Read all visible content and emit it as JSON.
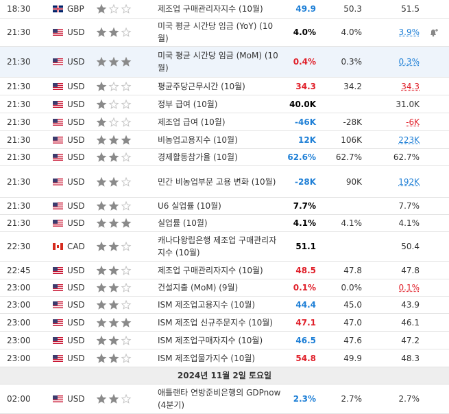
{
  "date_row": "2024년 11월 2일 토요일",
  "rows": [
    {
      "time": "18:30",
      "flag": "gb",
      "currency": "GBP",
      "importance": 1,
      "event": "제조업 구매관리자지수 (10월)",
      "actual": "49.9",
      "actual_color": "#1e7fd6",
      "forecast": "50.3",
      "previous": "51.5"
    },
    {
      "time": "21:30",
      "flag": "us",
      "currency": "USD",
      "importance": 2,
      "event": "미국 평균 시간당 임금 (YoY) (10월)",
      "actual": "4.0%",
      "forecast": "4.0%",
      "previous": "3.9%",
      "previous_color": "#1e7fd6",
      "previous_revised": true
    },
    {
      "time": "21:30",
      "flag": "us",
      "currency": "USD",
      "importance": 3,
      "event": "미국 평균 시간당 임금 (MoM) (10월)",
      "actual": "0.4%",
      "actual_color": "#e0202a",
      "forecast": "0.3%",
      "previous": "0.3%",
      "previous_color": "#1e7fd6",
      "previous_revised": true,
      "highlight": true
    },
    {
      "time": "21:30",
      "flag": "us",
      "currency": "USD",
      "importance": 1,
      "event": "평균주당근무시간 (10월)",
      "actual": "34.3",
      "actual_color": "#e0202a",
      "forecast": "34.2",
      "previous": "34.3",
      "previous_color": "#e0202a",
      "previous_revised": true
    },
    {
      "time": "21:30",
      "flag": "us",
      "currency": "USD",
      "importance": 1,
      "event": "정부 급여 (10월)",
      "actual": "40.0K",
      "forecast": null,
      "previous": "31.0K"
    },
    {
      "time": "21:30",
      "flag": "us",
      "currency": "USD",
      "importance": 1,
      "event": "제조업 급여 (10월)",
      "actual": "-46K",
      "actual_color": "#1e7fd6",
      "forecast": "-28K",
      "previous": "-6K",
      "previous_color": "#e0202a",
      "previous_revised": true
    },
    {
      "time": "21:30",
      "flag": "us",
      "currency": "USD",
      "importance": 3,
      "event": "비농업고용지수 (10월)",
      "actual": "12K",
      "actual_color": "#1e7fd6",
      "forecast": "106K",
      "previous": "223K",
      "previous_color": "#1e7fd6",
      "previous_revised": true
    },
    {
      "time": "21:30",
      "flag": "us",
      "currency": "USD",
      "importance": 2,
      "event": "경제활동참가율 (10월)",
      "actual": "62.6%",
      "actual_color": "#1e7fd6",
      "forecast": "62.7%",
      "previous": "62.7%"
    },
    {
      "time": "21:30",
      "flag": "us",
      "currency": "USD",
      "importance": 2,
      "event": "민간 비농업부문 고용 변화 (10월)",
      "actual": "-28K",
      "actual_color": "#1e7fd6",
      "forecast": "90K",
      "previous": "192K",
      "previous_color": "#1e7fd6",
      "previous_revised": true
    },
    {
      "time": "21:30",
      "flag": "us",
      "currency": "USD",
      "importance": 2,
      "event": "U6 실업률 (10월)",
      "actual": "7.7%",
      "forecast": null,
      "previous": "7.7%"
    },
    {
      "time": "21:30",
      "flag": "us",
      "currency": "USD",
      "importance": 3,
      "event": "실업률 (10월)",
      "actual": "4.1%",
      "forecast": "4.1%",
      "previous": "4.1%"
    },
    {
      "time": "22:30",
      "flag": "ca",
      "currency": "CAD",
      "importance": 2,
      "event": "캐나다왕립은행 제조업 구매관리자지수 (10월)",
      "actual": "51.1",
      "forecast": null,
      "previous": "50.4"
    },
    {
      "time": "22:45",
      "flag": "us",
      "currency": "USD",
      "importance": 2,
      "event": "제조업 구매관리자지수 (10월)",
      "actual": "48.5",
      "actual_color": "#e0202a",
      "forecast": "47.8",
      "previous": "47.8"
    },
    {
      "time": "23:00",
      "flag": "us",
      "currency": "USD",
      "importance": 2,
      "event": "건설지출 (MoM) (9월)",
      "actual": "0.1%",
      "actual_color": "#e0202a",
      "forecast": "0.0%",
      "previous": "0.1%",
      "previous_color": "#e0202a",
      "previous_revised": true
    },
    {
      "time": "23:00",
      "flag": "us",
      "currency": "USD",
      "importance": 2,
      "event": "ISM 제조업고용지수 (10월)",
      "actual": "44.4",
      "actual_color": "#1e7fd6",
      "forecast": "45.0",
      "previous": "43.9"
    },
    {
      "time": "23:00",
      "flag": "us",
      "currency": "USD",
      "importance": 3,
      "event": "ISM 제조업 신규주문지수 (10월)",
      "actual": "47.1",
      "actual_color": "#e0202a",
      "forecast": "47.0",
      "previous": "46.1"
    },
    {
      "time": "23:00",
      "flag": "us",
      "currency": "USD",
      "importance": 2,
      "event": "ISM 제조업구매자지수 (10월)",
      "actual": "46.5",
      "actual_color": "#1e7fd6",
      "forecast": "47.6",
      "previous": "47.2"
    },
    {
      "time": "23:00",
      "flag": "us",
      "currency": "USD",
      "importance": 2,
      "event": "ISM 제조업물가지수 (10월)",
      "actual": "54.8",
      "actual_color": "#e0202a",
      "forecast": "49.9",
      "previous": "48.3"
    }
  ],
  "rows_after": [
    {
      "time": "02:00",
      "flag": "us",
      "currency": "USD",
      "importance": 2,
      "event": "애틀랜타 연방준비은행의 GDPnow (4분기)",
      "actual": "2.3%",
      "actual_color": "#1e7fd6",
      "forecast": "2.7%",
      "previous": "2.7%"
    }
  ]
}
